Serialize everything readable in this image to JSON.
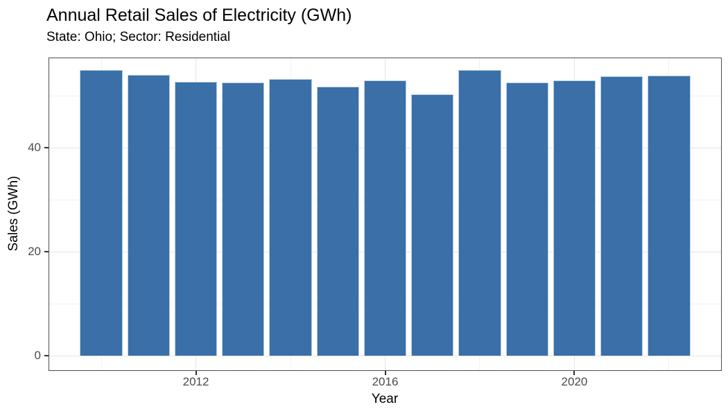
{
  "figure": {
    "title": "Annual Retail Sales of Electricity (GWh)",
    "subtitle": "State: Ohio; Sector: Residential"
  },
  "chart_data": {
    "type": "bar",
    "title": "Annual Retail Sales of Electricity (GWh)",
    "subtitle": "State: Ohio; Sector: Residential",
    "xlabel": "Year",
    "ylabel": "Sales (GWh)",
    "categories": [
      2010,
      2011,
      2012,
      2013,
      2014,
      2015,
      2016,
      2017,
      2018,
      2019,
      2020,
      2021,
      2022
    ],
    "values": [
      54.9,
      54.0,
      52.7,
      52.5,
      53.2,
      51.8,
      52.9,
      50.3,
      55.0,
      52.6,
      53.0,
      53.7,
      53.9
    ],
    "xlim": [
      2008.9,
      2023.1
    ],
    "ylim": [
      -2.8,
      57.2
    ],
    "bar_width_x_units": 0.9,
    "x_tick_values": [
      2012,
      2016,
      2020
    ],
    "x_tick_labels": [
      "2012",
      "2016",
      "2020"
    ],
    "x_minor_gridlines": [
      2010,
      2014,
      2018,
      2022
    ],
    "y_tick_values": [
      0,
      20,
      40
    ],
    "y_tick_labels": [
      "0",
      "20",
      "40"
    ],
    "y_minor_gridlines": [
      10,
      30,
      50
    ],
    "grid": true,
    "legend": false,
    "colors": {
      "bar_fill": "#3A6FA8",
      "bar_edge": "#B9CEE0",
      "grid_major": "#E4E4E4",
      "grid_minor": "#F2F2F2",
      "panel_border": "#4D4D4D",
      "tick_mark": "#2E2E2E",
      "tick_label": "#4A4A4A",
      "text": "#000000",
      "background": "#FFFFFF"
    }
  }
}
